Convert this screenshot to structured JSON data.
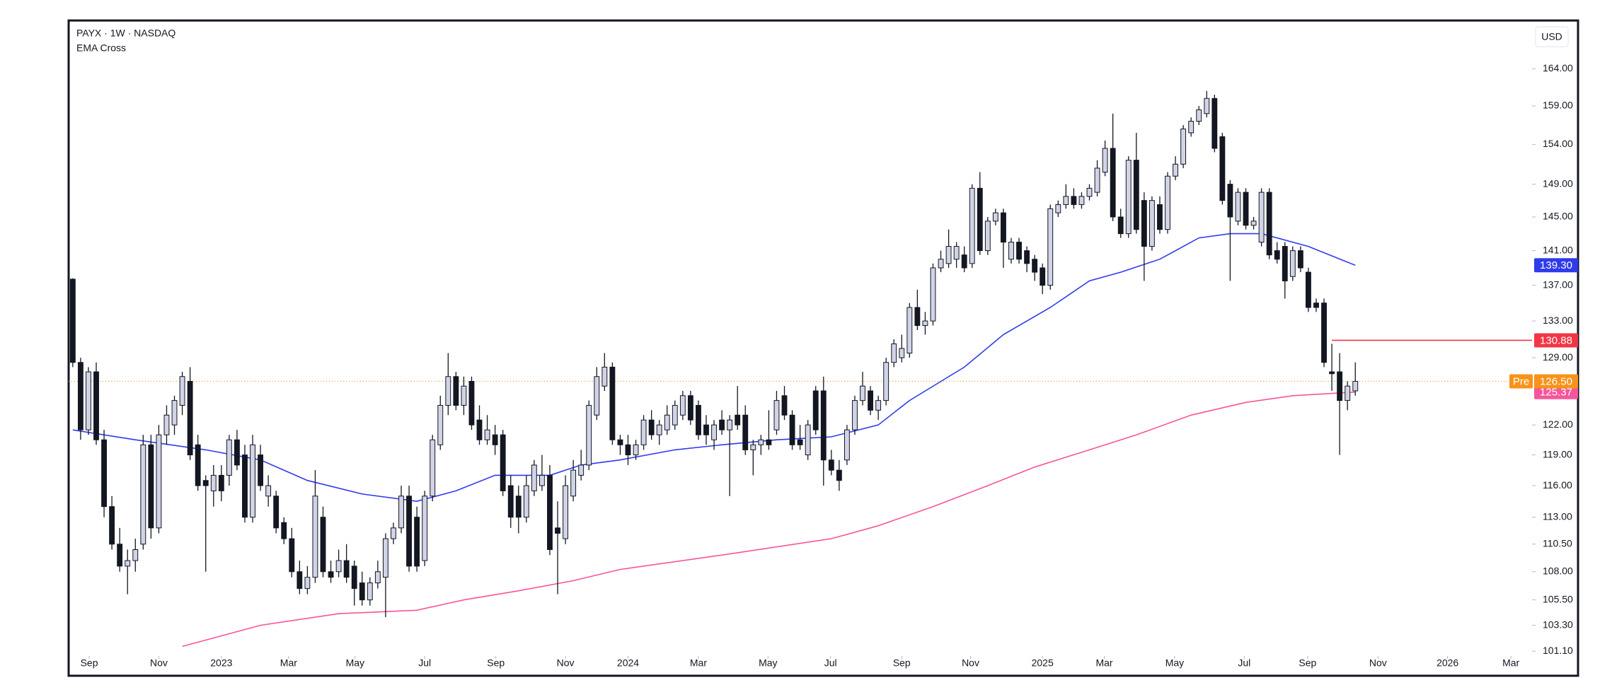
{
  "chart_data": {
    "type": "candlestick",
    "title": "PAYX · 1W · NASDAQ",
    "subtitle": "EMA Cross",
    "currency": "USD",
    "ylog": true,
    "ylim": [
      100.7,
      170.5
    ],
    "yticks": [
      {
        "value": 164,
        "label": "164.00"
      },
      {
        "value": 159,
        "label": "159.00"
      },
      {
        "value": 154,
        "label": "154.00"
      },
      {
        "value": 149,
        "label": "149.00"
      },
      {
        "value": 145,
        "label": "145.00"
      },
      {
        "value": 141,
        "label": "141.00"
      },
      {
        "value": 137,
        "label": "137.00"
      },
      {
        "value": 133,
        "label": "133.00"
      },
      {
        "value": 129,
        "label": "129.00"
      },
      {
        "value": 122,
        "label": "122.00"
      },
      {
        "value": 119,
        "label": "119.00"
      },
      {
        "value": 116,
        "label": "116.00"
      },
      {
        "value": 113,
        "label": "113.00"
      },
      {
        "value": 110.5,
        "label": "110.50"
      },
      {
        "value": 108,
        "label": "108.00"
      },
      {
        "value": 105.5,
        "label": "105.50"
      },
      {
        "value": 103.3,
        "label": "103.30"
      },
      {
        "value": 101.1,
        "label": "101.10"
      }
    ],
    "xlim": [
      -0.53,
      186.6
    ],
    "xticks": [
      {
        "value": 2.1,
        "label": "Sep"
      },
      {
        "value": 11.0,
        "label": "Nov"
      },
      {
        "value": 19.0,
        "label": "2023"
      },
      {
        "value": 27.6,
        "label": "Mar"
      },
      {
        "value": 36.1,
        "label": "May"
      },
      {
        "value": 45.0,
        "label": "Jul"
      },
      {
        "value": 54.1,
        "label": "Sep"
      },
      {
        "value": 63.0,
        "label": "Nov"
      },
      {
        "value": 71.0,
        "label": "2024"
      },
      {
        "value": 80.0,
        "label": "Mar"
      },
      {
        "value": 88.9,
        "label": "May"
      },
      {
        "value": 96.9,
        "label": "Jul"
      },
      {
        "value": 106.0,
        "label": "Sep"
      },
      {
        "value": 114.8,
        "label": "Nov"
      },
      {
        "value": 124.0,
        "label": "2025"
      },
      {
        "value": 131.9,
        "label": "Mar"
      },
      {
        "value": 140.9,
        "label": "May"
      },
      {
        "value": 149.8,
        "label": "Jul"
      },
      {
        "value": 157.9,
        "label": "Sep"
      },
      {
        "value": 166.9,
        "label": "Nov"
      },
      {
        "value": 175.8,
        "label": "2026"
      },
      {
        "value": 183.9,
        "label": "Mar"
      }
    ],
    "up_color": "#d1d4e6",
    "down_color": "#131722",
    "ohlc": [
      [
        137.7,
        137.8,
        128,
        128.5
      ],
      [
        128.5,
        129,
        120.5,
        121.5
      ],
      [
        121.5,
        128,
        121,
        127.5
      ],
      [
        127.5,
        128.5,
        120,
        120.5
      ],
      [
        120.5,
        121.5,
        113,
        114
      ],
      [
        114,
        115,
        110,
        110.5
      ],
      [
        110.5,
        112,
        108,
        108.5
      ],
      [
        108.5,
        110,
        106,
        109
      ],
      [
        109,
        111,
        108,
        110
      ],
      [
        110.5,
        121,
        110,
        120
      ],
      [
        120,
        121,
        111,
        112
      ],
      [
        112,
        122,
        111.5,
        121
      ],
      [
        121,
        124,
        120,
        123
      ],
      [
        122,
        125,
        121,
        124.5
      ],
      [
        124,
        127.5,
        123,
        127
      ],
      [
        126.5,
        128,
        118.5,
        119
      ],
      [
        120,
        121,
        115.5,
        116
      ],
      [
        116.5,
        117,
        108,
        116
      ],
      [
        115.5,
        118,
        114,
        117
      ],
      [
        117,
        118,
        114.5,
        115.5
      ],
      [
        117,
        121,
        116,
        120.5
      ],
      [
        120.5,
        121.5,
        117.5,
        118
      ],
      [
        119,
        120,
        112.5,
        113
      ],
      [
        113,
        121,
        112.5,
        120
      ],
      [
        119,
        120,
        115.5,
        116
      ],
      [
        115,
        117,
        114,
        116
      ],
      [
        115,
        115.5,
        111.5,
        112
      ],
      [
        112.5,
        113,
        110.5,
        111
      ],
      [
        111,
        112,
        107.5,
        108
      ],
      [
        108,
        109,
        106,
        106.5
      ],
      [
        106.5,
        108.5,
        106,
        107.5
      ],
      [
        107.5,
        117.5,
        107,
        115
      ],
      [
        113,
        114,
        107.5,
        108
      ],
      [
        108,
        109,
        107,
        107.5
      ],
      [
        108,
        110,
        107.5,
        109
      ],
      [
        109,
        110.5,
        107,
        107.5
      ],
      [
        108.5,
        109,
        105,
        106.5
      ],
      [
        107,
        108,
        105,
        105.5
      ],
      [
        105.5,
        107.5,
        105,
        107
      ],
      [
        107,
        109,
        106.5,
        108
      ],
      [
        107.5,
        111.5,
        104,
        111
      ],
      [
        111,
        112.5,
        110.5,
        112
      ],
      [
        112,
        116,
        111.5,
        115
      ],
      [
        115,
        116,
        108,
        108.5
      ],
      [
        113,
        114,
        108,
        108.5
      ],
      [
        109,
        115.5,
        108.5,
        115
      ],
      [
        115,
        121,
        114.5,
        120.5
      ],
      [
        120,
        125,
        119.5,
        124
      ],
      [
        124,
        129.5,
        123,
        127
      ],
      [
        127,
        127.5,
        123.5,
        124
      ],
      [
        124,
        127,
        123,
        126
      ],
      [
        126.5,
        127,
        121.5,
        122
      ],
      [
        122.5,
        124,
        120,
        120.5
      ],
      [
        120.5,
        123,
        120,
        121.5
      ],
      [
        121,
        122,
        119,
        120
      ],
      [
        121,
        121.5,
        115,
        115.5
      ],
      [
        116,
        117,
        112,
        113
      ],
      [
        115,
        116,
        111.5,
        113
      ],
      [
        113,
        117,
        112.5,
        116
      ],
      [
        115.5,
        118.5,
        115,
        118
      ],
      [
        116,
        119,
        115.5,
        117
      ],
      [
        117,
        118,
        109.5,
        110
      ],
      [
        112,
        114.5,
        106,
        111.5
      ],
      [
        111,
        117,
        110.5,
        116
      ],
      [
        115,
        118.5,
        114.5,
        117.5
      ],
      [
        117,
        119.5,
        116.5,
        118
      ],
      [
        118,
        124.5,
        117.5,
        124
      ],
      [
        123,
        128,
        122.5,
        127
      ],
      [
        126,
        129.5,
        125.5,
        128
      ],
      [
        128,
        128.5,
        120,
        120.5
      ],
      [
        120.5,
        121,
        119,
        120
      ],
      [
        120,
        121,
        118,
        119
      ],
      [
        119,
        120.5,
        118.5,
        120
      ],
      [
        120,
        123,
        119.5,
        122.5
      ],
      [
        122.5,
        123.5,
        120.5,
        121
      ],
      [
        121,
        122.5,
        120,
        122
      ],
      [
        121.5,
        124,
        121,
        123
      ],
      [
        122,
        124.5,
        121.5,
        124
      ],
      [
        123,
        125.5,
        122.5,
        125
      ],
      [
        125,
        125.5,
        122,
        122.5
      ],
      [
        124,
        124.5,
        120.5,
        121
      ],
      [
        122,
        123,
        120,
        121
      ],
      [
        120.5,
        122.5,
        119.5,
        122
      ],
      [
        122.5,
        123.5,
        121,
        121.5
      ],
      [
        121.5,
        123,
        115,
        122.5
      ],
      [
        123,
        126,
        121.5,
        122
      ],
      [
        123,
        124,
        119,
        119.5
      ],
      [
        119.5,
        120.5,
        117,
        120
      ],
      [
        120,
        121,
        119,
        120.5
      ],
      [
        120.5,
        123.5,
        119.5,
        120
      ],
      [
        121.5,
        125.5,
        121,
        124.5
      ],
      [
        125,
        126,
        122.5,
        123
      ],
      [
        123,
        123.5,
        119.5,
        120
      ],
      [
        120.5,
        122,
        119.5,
        120
      ],
      [
        119,
        122.5,
        118.5,
        122
      ],
      [
        125.5,
        126,
        121,
        121.5
      ],
      [
        125.5,
        127,
        116,
        118.5
      ],
      [
        118.5,
        119.5,
        117,
        117.5
      ],
      [
        117.5,
        118.5,
        115.5,
        116.5
      ],
      [
        118.5,
        122,
        118,
        121.5
      ],
      [
        121.5,
        125,
        121,
        124.5
      ],
      [
        124.5,
        127.5,
        124,
        126
      ],
      [
        125.5,
        126,
        123,
        123.5
      ],
      [
        123.5,
        125,
        122.5,
        124.5
      ],
      [
        124.5,
        129,
        124,
        128.5
      ],
      [
        128.5,
        131,
        128,
        130.5
      ],
      [
        129,
        131.5,
        128.5,
        130
      ],
      [
        129.5,
        135,
        129,
        134.5
      ],
      [
        134.5,
        136.5,
        132,
        132.5
      ],
      [
        132.5,
        134,
        131.5,
        133
      ],
      [
        133,
        139.5,
        132.5,
        139
      ],
      [
        139,
        141,
        138.5,
        140
      ],
      [
        139.5,
        143.5,
        139,
        141.5
      ],
      [
        140,
        142,
        139,
        141.5
      ],
      [
        140.5,
        141.5,
        138.5,
        139
      ],
      [
        139.5,
        149,
        139,
        148.5
      ],
      [
        148.5,
        150.5,
        140.5,
        141
      ],
      [
        141,
        145,
        140.5,
        144.5
      ],
      [
        144.5,
        146,
        144,
        145.5
      ],
      [
        145.5,
        146,
        139,
        142
      ],
      [
        140,
        142.5,
        139.5,
        142
      ],
      [
        142,
        142.5,
        139.5,
        140
      ],
      [
        141,
        141.5,
        138.5,
        139.5
      ],
      [
        140,
        140.5,
        137.5,
        138.5
      ],
      [
        139,
        139.5,
        136,
        137
      ],
      [
        137,
        146.5,
        136.5,
        146
      ],
      [
        145.5,
        147,
        145,
        146.5
      ],
      [
        146.5,
        149,
        146,
        147.5
      ],
      [
        147.5,
        148.5,
        146,
        146.5
      ],
      [
        146.5,
        148,
        146,
        147.5
      ],
      [
        147.5,
        149,
        147,
        148.5
      ],
      [
        148,
        152,
        147.5,
        151
      ],
      [
        150.5,
        154.5,
        150,
        153.5
      ],
      [
        153.5,
        158,
        144.5,
        145
      ],
      [
        145,
        146,
        142.5,
        143
      ],
      [
        143,
        152.5,
        142.5,
        152
      ],
      [
        152,
        155.5,
        143,
        143.5
      ],
      [
        147,
        148,
        137.5,
        141.5
      ],
      [
        141.5,
        147.5,
        141,
        147
      ],
      [
        146.5,
        147.5,
        143,
        143.5
      ],
      [
        143.5,
        150.5,
        143,
        150
      ],
      [
        150,
        152.5,
        149.5,
        151.5
      ],
      [
        151.5,
        156.5,
        151,
        156
      ],
      [
        155.5,
        157.5,
        155,
        157
      ],
      [
        157,
        159,
        156.5,
        158.5
      ],
      [
        158,
        161,
        157.5,
        160
      ],
      [
        160,
        160.5,
        153,
        153.5
      ],
      [
        155,
        155.5,
        146.5,
        147
      ],
      [
        149,
        149.5,
        137.5,
        145
      ],
      [
        144.5,
        148.5,
        144,
        148
      ],
      [
        148,
        148.5,
        143.5,
        144
      ],
      [
        144,
        145,
        143.5,
        144.5
      ],
      [
        142,
        148.5,
        141.5,
        148
      ],
      [
        148,
        148.5,
        140,
        140.5
      ],
      [
        141,
        142,
        139.5,
        140
      ],
      [
        141.5,
        142,
        135.5,
        137.5
      ],
      [
        138,
        141.5,
        137.5,
        141
      ],
      [
        141,
        141.5,
        138.5,
        139
      ],
      [
        138.5,
        139,
        134,
        134.5
      ],
      [
        135,
        135.5,
        134,
        134.5
      ],
      [
        135,
        135.5,
        128,
        128.5
      ],
      [
        127.5,
        130.5,
        125.5,
        127.3
      ],
      [
        127.5,
        129.5,
        119,
        124.5
      ],
      [
        124.5,
        126.5,
        123.5,
        126
      ],
      [
        125.5,
        128.5,
        125,
        126.5
      ]
    ],
    "series": [
      {
        "color": "#2f3bea",
        "last_label": "139.30",
        "x": [
          0,
          8,
          17,
          24,
          30,
          37,
          44,
          49,
          54,
          61,
          65,
          70,
          77,
          83,
          90,
          97,
          103,
          107,
          114,
          119,
          125,
          130,
          134,
          139,
          144,
          148,
          152,
          158,
          164
        ],
        "values": [
          121.5,
          120.5,
          119.5,
          118.5,
          116.5,
          115.2,
          114.5,
          115.5,
          117,
          117,
          118,
          118.5,
          119.5,
          120,
          120.5,
          120.8,
          122,
          124.5,
          128,
          131.5,
          134.5,
          137.5,
          138.5,
          140,
          142.5,
          143,
          143,
          141.5,
          139.3
        ]
      },
      {
        "color": "#f7559a",
        "last_label": "125.37",
        "x": [
          14,
          24,
          34,
          44,
          50,
          57,
          64,
          70,
          83,
          97,
          103,
          110,
          117,
          123,
          130,
          136,
          143,
          150,
          156,
          164
        ],
        "values": [
          101.5,
          103.3,
          104.3,
          104.6,
          105.5,
          106.3,
          107.2,
          108.2,
          109.5,
          111,
          112.2,
          114,
          116,
          117.8,
          119.5,
          121,
          123,
          124.3,
          125,
          125.37
        ]
      }
    ],
    "levels": [
      {
        "value": 130.88,
        "label": "130.88",
        "color": "#f23645",
        "from": 161
      }
    ],
    "pre_market": {
      "label": "Pre",
      "value": 126.5,
      "value_label": "126.50",
      "color": "#f7931a"
    }
  }
}
